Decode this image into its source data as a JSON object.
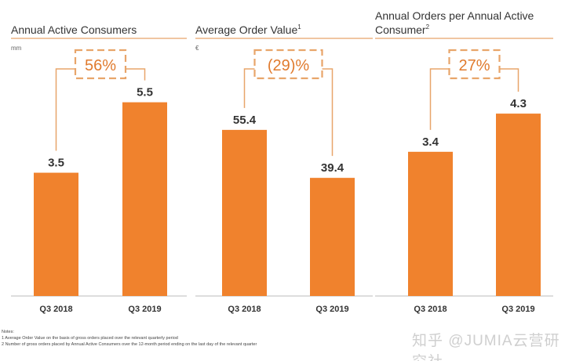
{
  "chart_data": [
    {
      "type": "bar",
      "title": "Annual Active Consumers",
      "superscript": "",
      "unit": "mm",
      "categories": [
        "Q3 2018",
        "Q3 2019"
      ],
      "values": [
        3.5,
        5.5
      ],
      "value_labels": [
        "3.5",
        "5.5"
      ],
      "change_label": "56%",
      "ylim": [
        0,
        5.78
      ]
    },
    {
      "type": "bar",
      "title": "Average Order Value",
      "superscript": "1",
      "unit": "€",
      "categories": [
        "Q3 2018",
        "Q3 2019"
      ],
      "values": [
        55.4,
        39.4
      ],
      "value_labels": [
        "55.4",
        "39.4"
      ],
      "change_label": "(29)%",
      "ylim": [
        0,
        67.9
      ]
    },
    {
      "type": "bar",
      "title": "Annual Orders per Annual Active Consumer",
      "superscript": "2",
      "unit": "",
      "categories": [
        "Q3 2018",
        "Q3 2019"
      ],
      "values": [
        3.4,
        4.3
      ],
      "value_labels": [
        "3.4",
        "4.3"
      ],
      "change_label": "27%",
      "ylim": [
        0,
        4.8
      ]
    }
  ],
  "colors": {
    "bar": "#F0822D",
    "accent_line": "#E8A56A",
    "change_text": "#E07B2E",
    "text": "#333333"
  },
  "notes": {
    "heading": "Notes:",
    "items": [
      "1  Average Order Value on the basis of gross orders placed over the relevant quarterly period",
      "2  Number of gross orders placed by Annual Active Consumers over the 12-month period ending on the last day of the relevant quarter"
    ]
  },
  "watermark": "知乎 @JUMIA云营研究社"
}
